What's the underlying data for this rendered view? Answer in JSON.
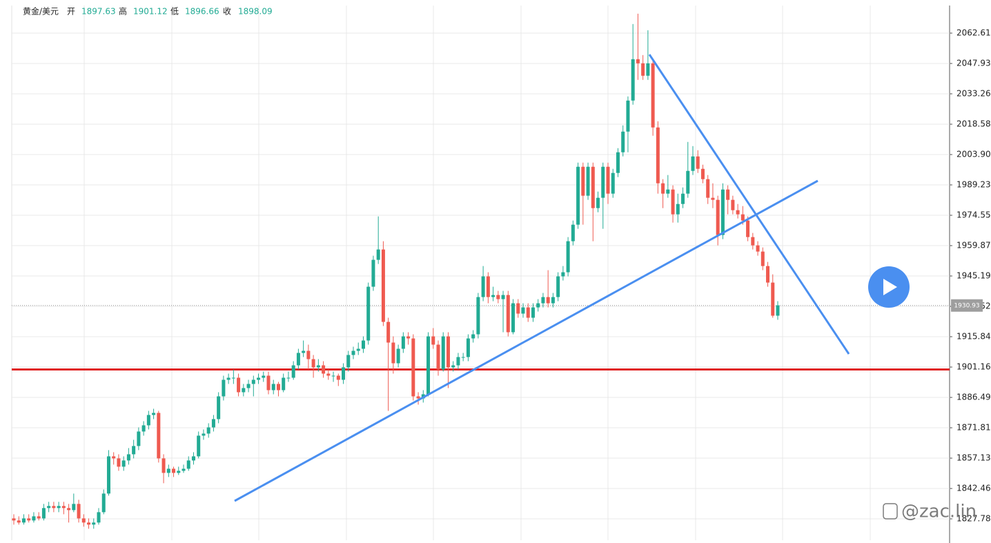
{
  "header": {
    "symbol": "黄金/美元",
    "open_label": "开",
    "open": "1897.63",
    "high_label": "高",
    "high": "1901.12",
    "low_label": "低",
    "low": "1896.66",
    "close_label": "收",
    "close": "1898.09"
  },
  "chart_data": {
    "type": "candlestick",
    "up_color": "#22ab94",
    "down_color": "#ef5a50",
    "ylim": [
      1817.44,
      2075.95
    ],
    "yticks": [
      {
        "value": 1827.78,
        "label": "1827.78"
      },
      {
        "value": 1842.46,
        "label": "1842.46"
      },
      {
        "value": 1857.13,
        "label": "1857.13"
      },
      {
        "value": 1871.81,
        "label": "1871.81"
      },
      {
        "value": 1886.49,
        "label": "1886.49"
      },
      {
        "value": 1901.16,
        "label": "1901.16"
      },
      {
        "value": 1915.84,
        "label": "1915.84"
      },
      {
        "value": 1930.52,
        "label": "1930.52"
      },
      {
        "value": 1945.19,
        "label": "1945.19"
      },
      {
        "value": 1959.87,
        "label": "1959.87"
      },
      {
        "value": 1974.55,
        "label": "1974.55"
      },
      {
        "value": 1989.23,
        "label": "1989.23"
      },
      {
        "value": 2003.9,
        "label": "2003.90"
      },
      {
        "value": 2018.58,
        "label": "2018.58"
      },
      {
        "value": 2033.26,
        "label": "2033.26"
      },
      {
        "value": 2047.93,
        "label": "2047.93"
      },
      {
        "value": 2062.61,
        "label": "2062.61"
      }
    ],
    "grid": true,
    "last_price": 1930.93,
    "support_level": 1900,
    "support_color": "#e02020",
    "candles": [
      [
        1828,
        1830,
        1825,
        1827
      ],
      [
        1827,
        1829,
        1825,
        1826
      ],
      [
        1826,
        1830,
        1825,
        1828
      ],
      [
        1828,
        1830,
        1826,
        1827
      ],
      [
        1827,
        1831,
        1826,
        1829
      ],
      [
        1829,
        1831,
        1827,
        1828
      ],
      [
        1828,
        1835,
        1827,
        1833
      ],
      [
        1833,
        1836,
        1831,
        1834
      ],
      [
        1834,
        1836,
        1831,
        1833
      ],
      [
        1833,
        1836,
        1831,
        1834
      ],
      [
        1834,
        1836,
        1830,
        1833
      ],
      [
        1833,
        1835,
        1826,
        1832
      ],
      [
        1832,
        1840,
        1831,
        1835
      ],
      [
        1835,
        1837,
        1826,
        1828
      ],
      [
        1828,
        1830,
        1824,
        1826
      ],
      [
        1826,
        1828,
        1823,
        1825
      ],
      [
        1825,
        1828,
        1823,
        1826
      ],
      [
        1826,
        1833,
        1825,
        1831
      ],
      [
        1831,
        1842,
        1830,
        1840
      ],
      [
        1840,
        1861,
        1839,
        1858
      ],
      [
        1858,
        1860,
        1854,
        1857
      ],
      [
        1857,
        1859,
        1851,
        1853
      ],
      [
        1853,
        1858,
        1851,
        1856
      ],
      [
        1856,
        1862,
        1854,
        1859
      ],
      [
        1859,
        1866,
        1857,
        1863
      ],
      [
        1863,
        1872,
        1861,
        1870
      ],
      [
        1870,
        1875,
        1868,
        1873
      ],
      [
        1873,
        1880,
        1871,
        1878
      ],
      [
        1878,
        1881,
        1876,
        1879
      ],
      [
        1879,
        1880,
        1855,
        1857
      ],
      [
        1857,
        1859,
        1845,
        1850
      ],
      [
        1850,
        1854,
        1848,
        1852
      ],
      [
        1852,
        1853,
        1848,
        1850
      ],
      [
        1850,
        1853,
        1849,
        1851
      ],
      [
        1851,
        1854,
        1850,
        1852
      ],
      [
        1852,
        1858,
        1851,
        1856
      ],
      [
        1856,
        1860,
        1854,
        1858
      ],
      [
        1858,
        1870,
        1857,
        1868
      ],
      [
        1868,
        1871,
        1866,
        1869
      ],
      [
        1869,
        1874,
        1867,
        1872
      ],
      [
        1872,
        1878,
        1870,
        1876
      ],
      [
        1876,
        1889,
        1874,
        1887
      ],
      [
        1887,
        1897,
        1885,
        1895
      ],
      [
        1895,
        1898,
        1893,
        1896
      ],
      [
        1896,
        1900,
        1893,
        1896
      ],
      [
        1896,
        1898,
        1887,
        1889
      ],
      [
        1889,
        1893,
        1887,
        1891
      ],
      [
        1891,
        1895,
        1889,
        1893
      ],
      [
        1893,
        1897,
        1887,
        1895
      ],
      [
        1895,
        1898,
        1893,
        1896
      ],
      [
        1896,
        1899,
        1894,
        1897
      ],
      [
        1897,
        1899,
        1888,
        1890
      ],
      [
        1890,
        1895,
        1888,
        1893
      ],
      [
        1893,
        1894,
        1887,
        1890
      ],
      [
        1890,
        1898,
        1889,
        1896
      ],
      [
        1896,
        1899,
        1894,
        1896
      ],
      [
        1896,
        1904,
        1895,
        1902
      ],
      [
        1902,
        1910,
        1900,
        1908
      ],
      [
        1908,
        1914,
        1906,
        1909
      ],
      [
        1909,
        1912,
        1900,
        1905
      ],
      [
        1905,
        1907,
        1896,
        1901
      ],
      [
        1901,
        1905,
        1899,
        1902
      ],
      [
        1902,
        1904,
        1896,
        1898
      ],
      [
        1898,
        1900,
        1895,
        1897
      ],
      [
        1897,
        1899,
        1894,
        1897
      ],
      [
        1897,
        1898,
        1892,
        1895
      ],
      [
        1895,
        1903,
        1893,
        1901
      ],
      [
        1901,
        1909,
        1899,
        1907
      ],
      [
        1907,
        1911,
        1905,
        1909
      ],
      [
        1909,
        1913,
        1907,
        1910
      ],
      [
        1910,
        1916,
        1908,
        1914
      ],
      [
        1914,
        1942,
        1912,
        1940
      ],
      [
        1940,
        1955,
        1938,
        1953
      ],
      [
        1953,
        1974,
        1951,
        1958
      ],
      [
        1958,
        1962,
        1921,
        1923
      ],
      [
        1923,
        1925,
        1880,
        1913
      ],
      [
        1913,
        1916,
        1898,
        1903
      ],
      [
        1903,
        1912,
        1901,
        1910
      ],
      [
        1910,
        1918,
        1908,
        1916
      ],
      [
        1916,
        1918,
        1912,
        1915
      ],
      [
        1915,
        1917,
        1885,
        1887
      ],
      [
        1887,
        1889,
        1883,
        1886
      ],
      [
        1886,
        1890,
        1884,
        1888
      ],
      [
        1888,
        1918,
        1887,
        1916
      ],
      [
        1916,
        1920,
        1910,
        1912
      ],
      [
        1912,
        1914,
        1897,
        1900
      ],
      [
        1900,
        1918,
        1899,
        1916
      ],
      [
        1916,
        1918,
        1891,
        1901
      ],
      [
        1901,
        1904,
        1899,
        1902
      ],
      [
        1902,
        1908,
        1900,
        1906
      ],
      [
        1906,
        1908,
        1904,
        1906
      ],
      [
        1906,
        1917,
        1904,
        1915
      ],
      [
        1915,
        1919,
        1913,
        1917
      ],
      [
        1917,
        1937,
        1915,
        1935
      ],
      [
        1935,
        1950,
        1933,
        1945
      ],
      [
        1945,
        1947,
        1932,
        1935
      ],
      [
        1935,
        1940,
        1933,
        1936
      ],
      [
        1936,
        1938,
        1932,
        1934
      ],
      [
        1934,
        1938,
        1918,
        1936
      ],
      [
        1936,
        1938,
        1916,
        1918
      ],
      [
        1918,
        1934,
        1917,
        1932
      ],
      [
        1932,
        1934,
        1925,
        1927
      ],
      [
        1927,
        1932,
        1925,
        1930
      ],
      [
        1930,
        1932,
        1923,
        1925
      ],
      [
        1925,
        1932,
        1923,
        1930
      ],
      [
        1930,
        1934,
        1928,
        1932
      ],
      [
        1932,
        1937,
        1930,
        1935
      ],
      [
        1935,
        1948,
        1930,
        1932
      ],
      [
        1932,
        1937,
        1930,
        1935
      ],
      [
        1935,
        1947,
        1933,
        1945
      ],
      [
        1945,
        1950,
        1943,
        1947
      ],
      [
        1947,
        1964,
        1945,
        1962
      ],
      [
        1962,
        1972,
        1960,
        1970
      ],
      [
        1970,
        2000,
        1968,
        1998
      ],
      [
        1998,
        2000,
        1970,
        1984
      ],
      [
        1984,
        2000,
        1982,
        1998
      ],
      [
        1998,
        2000,
        1962,
        1978
      ],
      [
        1978,
        1986,
        1976,
        1983
      ],
      [
        1983,
        2000,
        1968,
        1998
      ],
      [
        1998,
        2000,
        1980,
        1985
      ],
      [
        1985,
        1997,
        1983,
        1995
      ],
      [
        1995,
        2007,
        1993,
        2005
      ],
      [
        2005,
        2018,
        2003,
        2015
      ],
      [
        2015,
        2032,
        2005,
        2030
      ],
      [
        2030,
        2067,
        2028,
        2050
      ],
      [
        2050,
        2072,
        2040,
        2048
      ],
      [
        2048,
        2052,
        2040,
        2042
      ],
      [
        2042,
        2064,
        2040,
        2048
      ],
      [
        2048,
        2050,
        2013,
        2017
      ],
      [
        2017,
        2020,
        1985,
        1990
      ],
      [
        1990,
        1992,
        1978,
        1985
      ],
      [
        1985,
        1994,
        1983,
        1987
      ],
      [
        1987,
        1989,
        1971,
        1975
      ],
      [
        1975,
        1985,
        1971,
        1980
      ],
      [
        1980,
        1988,
        1978,
        1985
      ],
      [
        1985,
        2010,
        1983,
        1996
      ],
      [
        1996,
        2008,
        1994,
        2003
      ],
      [
        2003,
        2006,
        1995,
        1997
      ],
      [
        1997,
        1999,
        1990,
        1992
      ],
      [
        1992,
        1994,
        1980,
        1983
      ],
      [
        1983,
        1990,
        1978,
        1982
      ],
      [
        1982,
        1984,
        1960,
        1965
      ],
      [
        1965,
        1990,
        1963,
        1987
      ],
      [
        1987,
        1989,
        1975,
        1982
      ],
      [
        1982,
        1984,
        1975,
        1977
      ],
      [
        1977,
        1980,
        1973,
        1975
      ],
      [
        1975,
        1979,
        1970,
        1972
      ],
      [
        1972,
        1974,
        1962,
        1964
      ],
      [
        1964,
        1966,
        1958,
        1960
      ],
      [
        1960,
        1962,
        1955,
        1957
      ],
      [
        1957,
        1959,
        1948,
        1950
      ],
      [
        1950,
        1952,
        1940,
        1942
      ],
      [
        1942,
        1946,
        1925,
        1926
      ],
      [
        1926,
        1933,
        1924,
        1931
      ]
    ]
  },
  "watermark": "@zac.lin"
}
